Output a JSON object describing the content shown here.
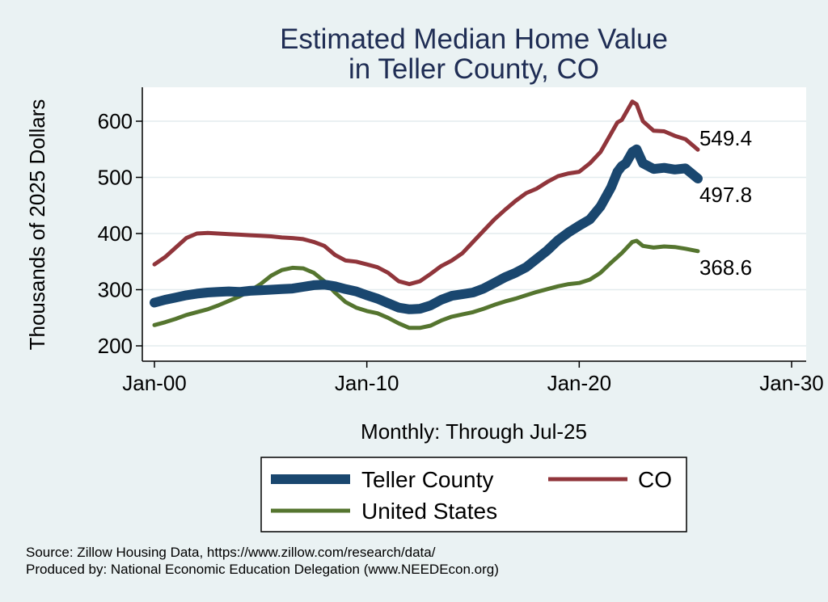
{
  "chart_data": {
    "type": "line",
    "title_line1": "Estimated Median Home Value",
    "title_line2": "in Teller County, CO",
    "ylabel": "Thousands of 2025 Dollars",
    "xlabel": "Monthly: Through Jul-25",
    "ylim": [
      180,
      660
    ],
    "yticks": [
      200,
      300,
      400,
      500,
      600
    ],
    "ytick_labels": [
      "200",
      "300",
      "400",
      "500",
      "600"
    ],
    "xlim": [
      2000,
      2030
    ],
    "xticks": [
      2000,
      2010,
      2020,
      2030
    ],
    "xtick_labels": [
      "Jan-00",
      "Jan-10",
      "Jan-20",
      "Jan-30"
    ],
    "grid": true,
    "legend_position": "bottom",
    "series": [
      {
        "name": "Teller County",
        "color": "#1a476f",
        "end_label": "497.8",
        "points": [
          [
            2000.0,
            277
          ],
          [
            2000.5,
            282
          ],
          [
            2001.0,
            286
          ],
          [
            2001.5,
            290
          ],
          [
            2002.0,
            293
          ],
          [
            2002.5,
            295
          ],
          [
            2003.0,
            296
          ],
          [
            2003.5,
            297
          ],
          [
            2004.0,
            296
          ],
          [
            2004.5,
            298
          ],
          [
            2005.0,
            299
          ],
          [
            2005.5,
            300
          ],
          [
            2006.0,
            301
          ],
          [
            2006.5,
            302
          ],
          [
            2007.0,
            305
          ],
          [
            2007.5,
            308
          ],
          [
            2008.0,
            309
          ],
          [
            2008.5,
            306
          ],
          [
            2009.0,
            301
          ],
          [
            2009.5,
            297
          ],
          [
            2010.0,
            290
          ],
          [
            2010.5,
            284
          ],
          [
            2011.0,
            276
          ],
          [
            2011.5,
            268
          ],
          [
            2012.0,
            265
          ],
          [
            2012.5,
            266
          ],
          [
            2013.0,
            272
          ],
          [
            2013.5,
            282
          ],
          [
            2014.0,
            289
          ],
          [
            2014.5,
            292
          ],
          [
            2015.0,
            295
          ],
          [
            2015.5,
            302
          ],
          [
            2016.0,
            312
          ],
          [
            2016.5,
            322
          ],
          [
            2017.0,
            330
          ],
          [
            2017.5,
            340
          ],
          [
            2018.0,
            355
          ],
          [
            2018.5,
            370
          ],
          [
            2019.0,
            388
          ],
          [
            2019.5,
            402
          ],
          [
            2020.0,
            414
          ],
          [
            2020.5,
            425
          ],
          [
            2021.0,
            448
          ],
          [
            2021.5,
            482
          ],
          [
            2021.8,
            510
          ],
          [
            2022.0,
            520
          ],
          [
            2022.2,
            525
          ],
          [
            2022.5,
            545
          ],
          [
            2022.7,
            550
          ],
          [
            2023.0,
            525
          ],
          [
            2023.5,
            515
          ],
          [
            2024.0,
            517
          ],
          [
            2024.5,
            514
          ],
          [
            2025.0,
            516
          ],
          [
            2025.583,
            497.8
          ]
        ]
      },
      {
        "name": "CO",
        "color": "#90353b",
        "end_label": "549.4",
        "points": [
          [
            2000.0,
            345
          ],
          [
            2000.5,
            358
          ],
          [
            2001.0,
            375
          ],
          [
            2001.5,
            392
          ],
          [
            2002.0,
            400
          ],
          [
            2002.5,
            401
          ],
          [
            2003.0,
            400
          ],
          [
            2003.5,
            399
          ],
          [
            2004.0,
            398
          ],
          [
            2004.5,
            397
          ],
          [
            2005.0,
            396
          ],
          [
            2005.5,
            395
          ],
          [
            2006.0,
            393
          ],
          [
            2006.5,
            392
          ],
          [
            2007.0,
            390
          ],
          [
            2007.5,
            385
          ],
          [
            2008.0,
            378
          ],
          [
            2008.5,
            362
          ],
          [
            2009.0,
            352
          ],
          [
            2009.5,
            350
          ],
          [
            2010.0,
            345
          ],
          [
            2010.5,
            340
          ],
          [
            2011.0,
            330
          ],
          [
            2011.5,
            315
          ],
          [
            2012.0,
            310
          ],
          [
            2012.5,
            315
          ],
          [
            2013.0,
            328
          ],
          [
            2013.5,
            342
          ],
          [
            2014.0,
            352
          ],
          [
            2014.5,
            365
          ],
          [
            2015.0,
            385
          ],
          [
            2015.5,
            405
          ],
          [
            2016.0,
            425
          ],
          [
            2016.5,
            442
          ],
          [
            2017.0,
            458
          ],
          [
            2017.5,
            472
          ],
          [
            2018.0,
            480
          ],
          [
            2018.5,
            492
          ],
          [
            2019.0,
            502
          ],
          [
            2019.5,
            507
          ],
          [
            2020.0,
            510
          ],
          [
            2020.5,
            525
          ],
          [
            2021.0,
            545
          ],
          [
            2021.5,
            578
          ],
          [
            2021.8,
            598
          ],
          [
            2022.0,
            602
          ],
          [
            2022.5,
            635
          ],
          [
            2022.7,
            630
          ],
          [
            2023.0,
            600
          ],
          [
            2023.5,
            583
          ],
          [
            2024.0,
            582
          ],
          [
            2024.5,
            574
          ],
          [
            2025.0,
            568
          ],
          [
            2025.583,
            549.4
          ]
        ]
      },
      {
        "name": "United States",
        "color": "#55752f",
        "end_label": "368.6",
        "points": [
          [
            2000.0,
            237
          ],
          [
            2000.5,
            242
          ],
          [
            2001.0,
            248
          ],
          [
            2001.5,
            255
          ],
          [
            2002.0,
            260
          ],
          [
            2002.5,
            265
          ],
          [
            2003.0,
            272
          ],
          [
            2003.5,
            280
          ],
          [
            2004.0,
            288
          ],
          [
            2004.5,
            298
          ],
          [
            2005.0,
            310
          ],
          [
            2005.5,
            325
          ],
          [
            2006.0,
            335
          ],
          [
            2006.5,
            339
          ],
          [
            2007.0,
            338
          ],
          [
            2007.5,
            330
          ],
          [
            2008.0,
            315
          ],
          [
            2008.5,
            295
          ],
          [
            2009.0,
            278
          ],
          [
            2009.5,
            268
          ],
          [
            2010.0,
            262
          ],
          [
            2010.5,
            258
          ],
          [
            2011.0,
            250
          ],
          [
            2011.5,
            240
          ],
          [
            2012.0,
            232
          ],
          [
            2012.5,
            232
          ],
          [
            2013.0,
            236
          ],
          [
            2013.5,
            245
          ],
          [
            2014.0,
            252
          ],
          [
            2014.5,
            256
          ],
          [
            2015.0,
            260
          ],
          [
            2015.5,
            266
          ],
          [
            2016.0,
            273
          ],
          [
            2016.5,
            279
          ],
          [
            2017.0,
            284
          ],
          [
            2017.5,
            290
          ],
          [
            2018.0,
            296
          ],
          [
            2018.5,
            301
          ],
          [
            2019.0,
            306
          ],
          [
            2019.5,
            310
          ],
          [
            2020.0,
            312
          ],
          [
            2020.5,
            318
          ],
          [
            2021.0,
            330
          ],
          [
            2021.5,
            348
          ],
          [
            2022.0,
            365
          ],
          [
            2022.5,
            385
          ],
          [
            2022.7,
            387
          ],
          [
            2023.0,
            378
          ],
          [
            2023.5,
            375
          ],
          [
            2024.0,
            377
          ],
          [
            2024.5,
            376
          ],
          [
            2025.0,
            373
          ],
          [
            2025.583,
            368.6
          ]
        ]
      }
    ]
  },
  "legend": {
    "teller_label": "Teller County",
    "co_label": "CO",
    "us_label": "United States"
  },
  "footer": {
    "source": "Source: Zillow Housing Data, https://www.zillow.com/research/data/",
    "produced": "Produced by: National Economic Education Delegation (www.NEEDEcon.org)"
  }
}
